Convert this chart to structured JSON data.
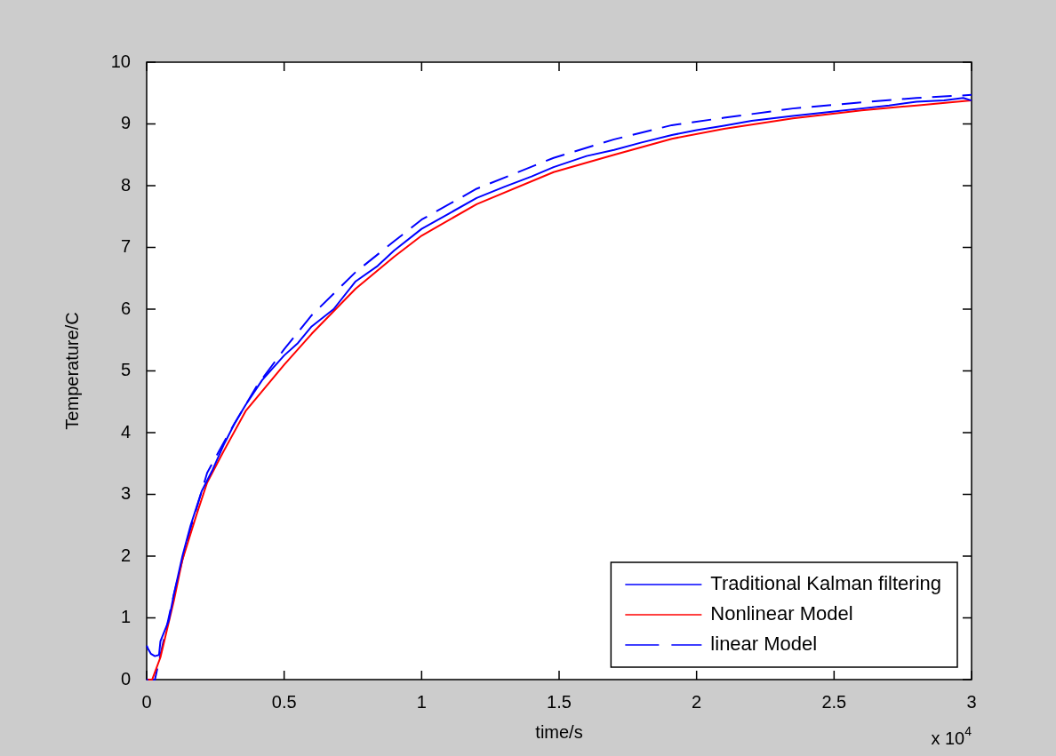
{
  "chart_data": {
    "type": "line",
    "xlabel": "time/s",
    "ylabel": "Temperature/C",
    "xlim": [
      0,
      3
    ],
    "xticks": [
      0,
      0.5,
      1,
      1.5,
      2,
      2.5,
      3
    ],
    "ylim": [
      0,
      10
    ],
    "yticks": [
      0,
      1,
      2,
      3,
      4,
      5,
      6,
      7,
      8,
      9,
      10
    ],
    "legend": "bottom right",
    "grid": false,
    "marker": "none",
    "annotations": [
      "x 10$^{4}$"
    ],
    "series": [
      {
        "name": "Traditional Kalman filtering",
        "color": "#0000ff",
        "line_style": "solid",
        "x": [
          0,
          0.005,
          0.015,
          0.03,
          0.045,
          0.05,
          0.08,
          0.1,
          0.13,
          0.16,
          0.2,
          0.24,
          0.28,
          0.32,
          0.36,
          0.42,
          0.5,
          0.55,
          0.6,
          0.68,
          0.76,
          0.84,
          0.9,
          1.0,
          1.1,
          1.2,
          1.3,
          1.4,
          1.48,
          1.6,
          1.7,
          1.8,
          1.91,
          2.0,
          2.1,
          2.2,
          2.35,
          2.5,
          2.6,
          2.7,
          2.8,
          2.9,
          2.97,
          3.0
        ],
        "values": [
          0.55,
          0.5,
          0.42,
          0.38,
          0.4,
          0.62,
          0.95,
          1.4,
          2.0,
          2.5,
          3.05,
          3.4,
          3.8,
          4.15,
          4.45,
          4.85,
          5.25,
          5.45,
          5.72,
          6.0,
          6.45,
          6.7,
          6.95,
          7.3,
          7.55,
          7.8,
          7.98,
          8.15,
          8.3,
          8.48,
          8.58,
          8.7,
          8.82,
          8.9,
          8.97,
          9.05,
          9.13,
          9.2,
          9.25,
          9.3,
          9.36,
          9.38,
          9.42,
          9.38
        ]
      },
      {
        "name": "Nonlinear Model",
        "color": "#ff0000",
        "line_style": "solid",
        "x": [
          0.005,
          0.02,
          0.05,
          0.1,
          0.13,
          0.18,
          0.22,
          0.28,
          0.36,
          0.5,
          0.6,
          0.76,
          0.9,
          1.0,
          1.2,
          1.48,
          1.7,
          1.91,
          2.1,
          2.35,
          2.6,
          2.8,
          3.0
        ],
        "values": [
          0,
          0,
          0.36,
          1.3,
          1.94,
          2.65,
          3.19,
          3.7,
          4.35,
          5.1,
          5.6,
          6.33,
          6.85,
          7.19,
          7.7,
          8.22,
          8.5,
          8.76,
          8.92,
          9.09,
          9.22,
          9.3,
          9.38
        ]
      },
      {
        "name": "linear Model",
        "color": "#0000ff",
        "line_style": "dashed",
        "x": [
          0,
          0.03,
          0.06,
          0.1,
          0.15,
          0.22,
          0.3,
          0.4,
          0.5,
          0.6,
          0.76,
          0.9,
          1.0,
          1.2,
          1.48,
          1.7,
          1.91,
          2.1,
          2.35,
          2.6,
          2.8,
          3.0
        ],
        "values": [
          0,
          0,
          0.6,
          1.4,
          2.3,
          3.35,
          4.0,
          4.75,
          5.35,
          5.9,
          6.6,
          7.1,
          7.45,
          7.95,
          8.45,
          8.75,
          8.98,
          9.1,
          9.25,
          9.35,
          9.42,
          9.47
        ]
      }
    ]
  }
}
